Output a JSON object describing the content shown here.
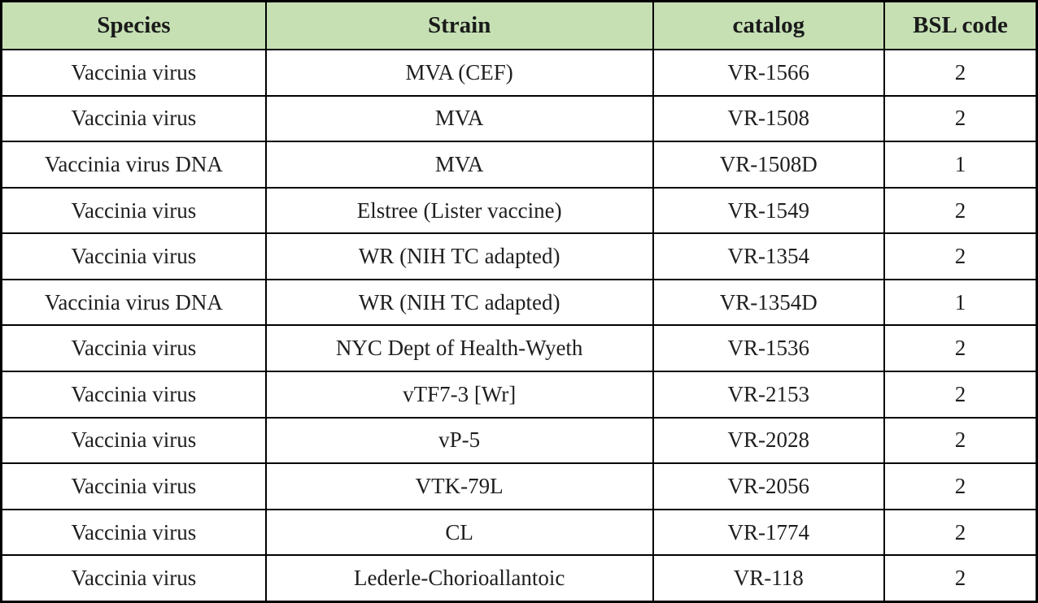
{
  "table": {
    "columns": [
      {
        "id": "species",
        "label": "Species"
      },
      {
        "id": "strain",
        "label": "Strain"
      },
      {
        "id": "catalog",
        "label": "catalog"
      },
      {
        "id": "bsl-code",
        "label": "BSL code"
      }
    ],
    "rows": [
      [
        "Vaccinia virus",
        "MVA (CEF)",
        "VR-1566",
        "2"
      ],
      [
        "Vaccinia virus",
        "MVA",
        "VR-1508",
        "2"
      ],
      [
        "Vaccinia virus DNA",
        "MVA",
        "VR-1508D",
        "1"
      ],
      [
        "Vaccinia virus",
        "Elstree (Lister vaccine)",
        "VR-1549",
        "2"
      ],
      [
        "Vaccinia virus",
        "WR (NIH TC adapted)",
        "VR-1354",
        "2"
      ],
      [
        "Vaccinia virus DNA",
        "WR (NIH TC adapted)",
        "VR-1354D",
        "1"
      ],
      [
        "Vaccinia virus",
        "NYC Dept of Health-Wyeth",
        "VR-1536",
        "2"
      ],
      [
        "Vaccinia virus",
        "vTF7-3 [Wr]",
        "VR-2153",
        "2"
      ],
      [
        "Vaccinia virus",
        "vP-5",
        "VR-2028",
        "2"
      ],
      [
        "Vaccinia virus",
        "VTK-79L",
        "VR-2056",
        "2"
      ],
      [
        "Vaccinia virus",
        "CL",
        "VR-1774",
        "2"
      ],
      [
        "Vaccinia virus",
        "Lederle-Chorioallantoic",
        "VR-118",
        "2"
      ]
    ]
  },
  "colors": {
    "header_bg": "#c6e0b4",
    "border": "#000000",
    "text": "#1f1f1f"
  }
}
